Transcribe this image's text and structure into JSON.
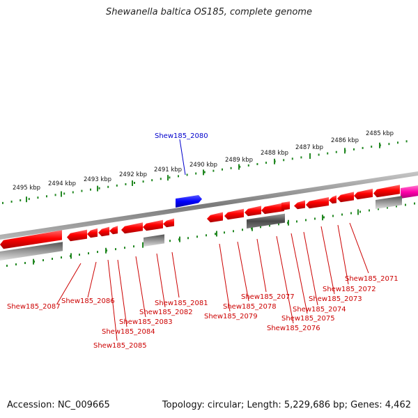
{
  "title": "Shewanella baltica OS185, complete genome",
  "footer": {
    "accession": "Accession: NC_009665",
    "summary": "Topology: circular; Length: 5,229,686 bp; Genes: 4,462"
  },
  "colors": {
    "forward_gene": "#ff0000",
    "reverse_gene": "#ff0000",
    "pseudo_gene": "#909090",
    "highlight_gene": "#0000ff",
    "rna_gene": "#ff00aa",
    "tick": "#228822",
    "backbone": "#8a8a8a",
    "label_red": "#cc0000",
    "label_blue": "#0000cc"
  },
  "scale_labels": [
    "2495 kbp",
    "2494 kbp",
    "2493 kbp",
    "2492 kbp",
    "2491 kbp",
    "2490 kbp",
    "2489 kbp",
    "2488 kbp",
    "2487 kbp",
    "2486 kbp",
    "2485 kbp"
  ],
  "highlight_label": "Shew185_2080",
  "gene_labels": [
    "Shew185_2087",
    "Shew185_2086",
    "Shew185_2085",
    "Shew185_2084",
    "Shew185_2083",
    "Shew185_2082",
    "Shew185_2081",
    "Shew185_2079",
    "Shew185_2078",
    "Shew185_2077",
    "Shew185_2076",
    "Shew185_2075",
    "Shew185_2074",
    "Shew185_2073",
    "Shew185_2072",
    "Shew185_2071"
  ]
}
